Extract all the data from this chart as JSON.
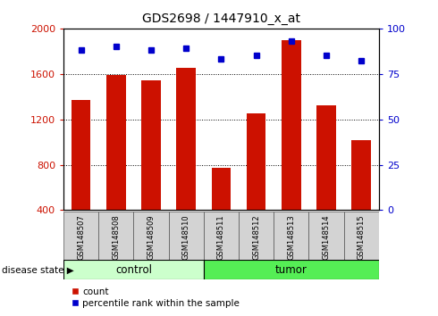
{
  "title": "GDS2698 / 1447910_x_at",
  "samples": [
    "GSM148507",
    "GSM148508",
    "GSM148509",
    "GSM148510",
    "GSM148511",
    "GSM148512",
    "GSM148513",
    "GSM148514",
    "GSM148515"
  ],
  "counts": [
    1370,
    1590,
    1540,
    1650,
    770,
    1250,
    1900,
    1320,
    1020
  ],
  "percentiles": [
    88,
    90,
    88,
    89,
    83,
    85,
    93,
    85,
    82
  ],
  "groups": [
    "control",
    "control",
    "control",
    "control",
    "tumor",
    "tumor",
    "tumor",
    "tumor",
    "tumor"
  ],
  "bar_color": "#cc1100",
  "dot_color": "#0000cc",
  "ylim_left": [
    400,
    2000
  ],
  "ylim_right": [
    0,
    100
  ],
  "yticks_left": [
    400,
    800,
    1200,
    1600,
    2000
  ],
  "yticks_right": [
    0,
    25,
    50,
    75,
    100
  ],
  "control_color": "#ccffcc",
  "tumor_color": "#55ee55",
  "legend_count_label": "count",
  "legend_pct_label": "percentile rank within the sample",
  "disease_state_label": "disease state"
}
